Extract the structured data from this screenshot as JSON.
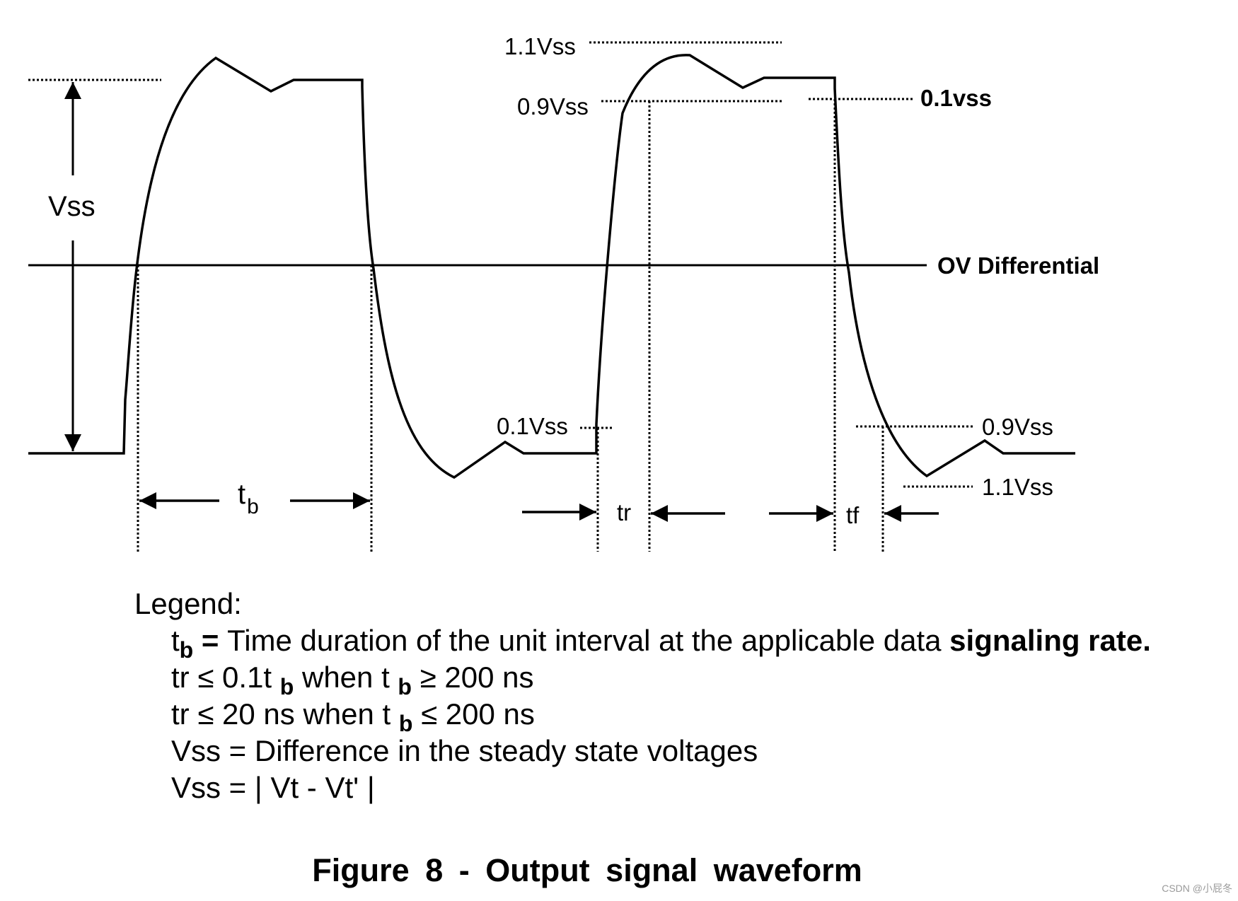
{
  "diagram": {
    "labels": {
      "vss_amplitude": "Vss",
      "vss_110_top": "1.1Vss",
      "vss_090_top": "0.9Vss",
      "vss_010_fall": "0.1vss",
      "zero_diff": "OV Differential",
      "vss_010_rise": "0.1Vss",
      "vss_090_bottom": "0.9Vss",
      "vss_110_bottom": "1.1Vss",
      "tb_t": "t",
      "tb_b": "b",
      "tr": "tr",
      "tf": "tf"
    }
  },
  "legend": {
    "title": "Legend:",
    "tb_def": {
      "sym": "t",
      "sub": "b",
      "eq": " = ",
      "text": "Time duration of the unit interval at the applicable data ",
      "bold": "signaling rate."
    },
    "tr_cond_1": {
      "a": "tr ≤ 0.1t ",
      "sub1": "b",
      "b": " when  t ",
      "sub2": "b",
      "c": " ≥ 200 ns"
    },
    "tr_cond_2": {
      "a": "tr ≤ 20 ns when  t ",
      "sub": "b",
      "c": " ≤ 200 ns"
    },
    "vss_def": "Vss = Difference in the steady state voltages",
    "vss_formula": "Vss = | Vt - Vt'  |"
  },
  "caption": "Figure 8 - Output signal waveform",
  "watermark": "CSDN @小屁冬"
}
